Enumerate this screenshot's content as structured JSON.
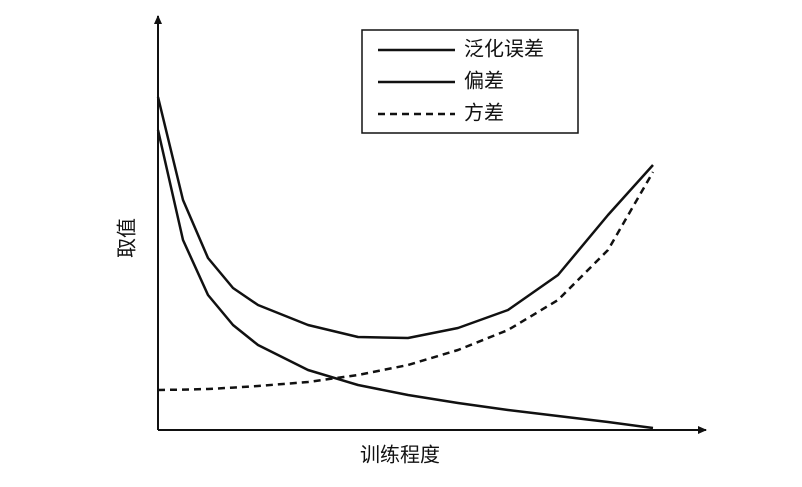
{
  "chart_data": {
    "type": "line",
    "x_label": "训练程度",
    "y_label": "取值",
    "x": [
      0,
      5,
      10,
      15,
      20,
      30,
      40,
      50,
      60,
      70,
      80,
      90,
      99
    ],
    "series": [
      {
        "name": "泛化误差",
        "color": "#111111",
        "dash": "solid",
        "values": [
          83.25,
          57.5,
          43,
          35.5,
          31.25,
          26.25,
          23.25,
          23,
          25.5,
          30,
          38.75,
          53.75,
          66.25
        ]
      },
      {
        "name": "偏差",
        "color": "#111111",
        "dash": "solid",
        "values": [
          75,
          47.5,
          33.75,
          26.25,
          21.25,
          15,
          11.25,
          8.75,
          6.75,
          5,
          3.5,
          2,
          0.5
        ]
      },
      {
        "name": "方差",
        "color": "#111111",
        "dash": "dashed",
        "values": [
          10,
          10.1,
          10.25,
          10.6,
          11,
          12,
          13.75,
          16.25,
          20,
          25,
          32.5,
          45,
          64.5
        ]
      }
    ],
    "xlim": [
      0,
      100
    ],
    "ylim": [
      0,
      100
    ],
    "legend": "top-right"
  }
}
